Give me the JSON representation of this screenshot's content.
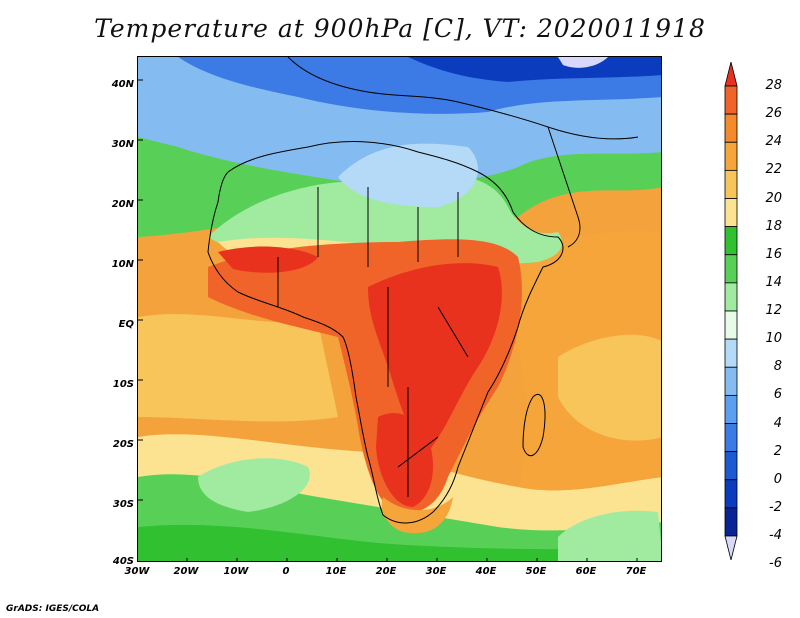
{
  "title": "Temperature at 900hPa [C], VT: 2020011918",
  "credit": "GrADS: IGES/COLA",
  "map": {
    "lat_labels": [
      "40N",
      "30N",
      "20N",
      "10N",
      "EQ",
      "10S",
      "20S",
      "30S",
      "40S"
    ],
    "lat_values": [
      40,
      30,
      20,
      10,
      0,
      -10,
      -20,
      -30,
      -40
    ],
    "lon_labels": [
      "30W",
      "20W",
      "10W",
      "0",
      "10E",
      "20E",
      "30E",
      "40E",
      "50E",
      "60E",
      "70E"
    ],
    "lon_values": [
      -30,
      -20,
      -10,
      0,
      10,
      20,
      30,
      40,
      50,
      60,
      70
    ],
    "lon_range": [
      -30,
      75
    ],
    "lat_range": [
      -40,
      45
    ]
  },
  "colorbar": {
    "labels": [
      "28",
      "26",
      "24",
      "22",
      "20",
      "18",
      "16",
      "14",
      "12",
      "10",
      "8",
      "6",
      "4",
      "2",
      "0",
      "-2",
      "-4",
      "-6"
    ],
    "colors": [
      "#e8321e",
      "#f0642a",
      "#f48a2a",
      "#f5a53a",
      "#f8c55a",
      "#fbe391",
      "#30c030",
      "#58d058",
      "#a0eba0",
      "#e6fbe8",
      "#b4daf8",
      "#84bcf2",
      "#5c9ef0",
      "#3c7ae6",
      "#1c5ad2",
      "#0c3cbe",
      "#082496",
      "#d8d8fa"
    ]
  }
}
